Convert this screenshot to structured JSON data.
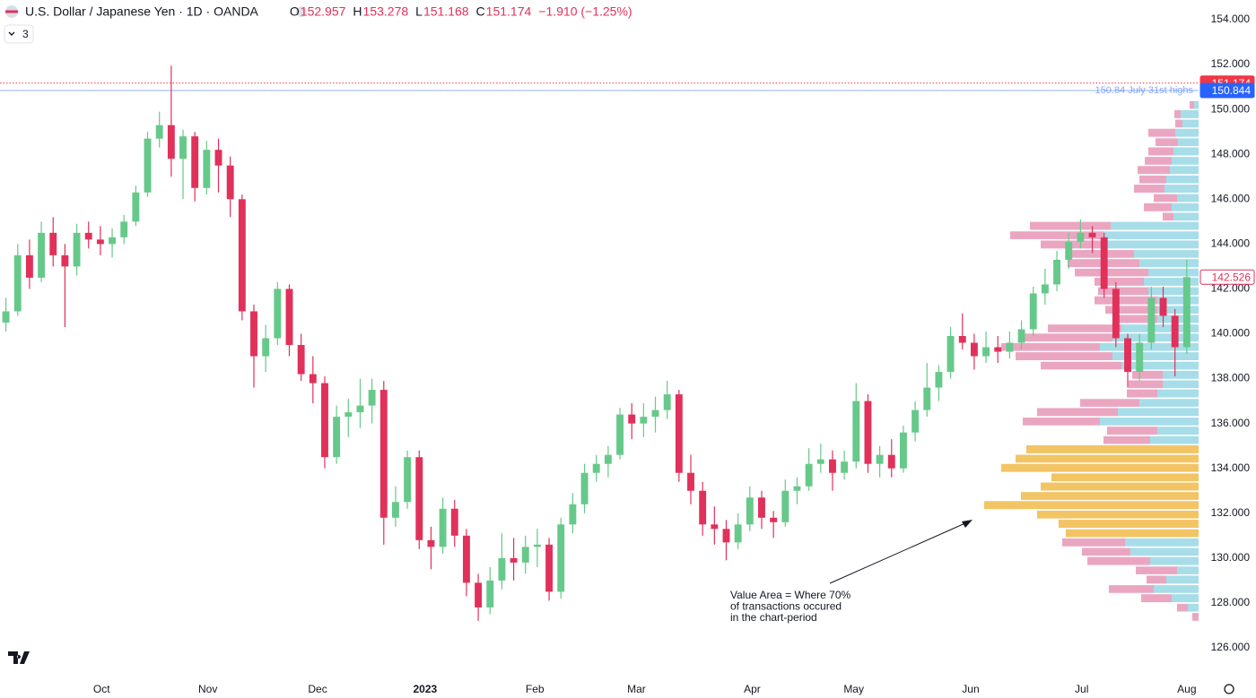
{
  "header": {
    "title": "U.S. Dollar / Japanese Yen · 1D · OANDA",
    "ohlc_labels": [
      "O",
      "H",
      "L",
      "C"
    ],
    "ohlc_values": [
      "152.957",
      "153.278",
      "151.168",
      "151.174"
    ],
    "change": "−1.910 (−1.25%)",
    "indicators": "3"
  },
  "chart_data": {
    "type": "candlestick",
    "ohlc": [
      [
        140.5,
        141.6,
        140.1,
        141.0
      ],
      [
        141.0,
        144.0,
        140.8,
        143.5
      ],
      [
        143.5,
        144.2,
        142.0,
        142.5
      ],
      [
        142.5,
        145.0,
        142.3,
        144.5
      ],
      [
        144.5,
        145.2,
        143.0,
        143.5
      ],
      [
        143.5,
        144.0,
        140.3,
        143.0
      ],
      [
        143.0,
        144.9,
        142.6,
        144.5
      ],
      [
        144.5,
        145.0,
        143.8,
        144.2
      ],
      [
        144.2,
        144.8,
        143.5,
        144.0
      ],
      [
        144.0,
        144.7,
        143.4,
        144.3
      ],
      [
        144.3,
        145.3,
        144.0,
        145.0
      ],
      [
        145.0,
        146.6,
        144.8,
        146.3
      ],
      [
        146.3,
        149.0,
        146.1,
        148.7
      ],
      [
        148.7,
        149.9,
        148.3,
        149.3
      ],
      [
        149.3,
        151.95,
        147.0,
        147.8
      ],
      [
        147.8,
        149.1,
        146.0,
        148.8
      ],
      [
        148.8,
        149.0,
        145.9,
        146.5
      ],
      [
        146.5,
        148.6,
        146.2,
        148.2
      ],
      [
        148.2,
        148.7,
        146.3,
        147.5
      ],
      [
        147.5,
        147.9,
        145.2,
        146.0
      ],
      [
        146.0,
        146.2,
        140.6,
        141.0
      ],
      [
        141.0,
        141.3,
        137.6,
        139.0
      ],
      [
        139.0,
        140.4,
        138.3,
        139.8
      ],
      [
        139.8,
        142.3,
        139.5,
        142.0
      ],
      [
        142.0,
        142.2,
        139.0,
        139.5
      ],
      [
        139.5,
        140.0,
        137.9,
        138.2
      ],
      [
        138.2,
        139.0,
        136.9,
        137.8
      ],
      [
        137.8,
        138.1,
        134.0,
        134.5
      ],
      [
        134.5,
        136.8,
        134.2,
        136.3
      ],
      [
        136.3,
        137.1,
        135.4,
        136.5
      ],
      [
        136.5,
        138.0,
        135.8,
        136.8
      ],
      [
        136.8,
        138.0,
        136.0,
        137.5
      ],
      [
        137.5,
        137.9,
        130.6,
        131.8
      ],
      [
        131.8,
        133.2,
        131.4,
        132.5
      ],
      [
        132.5,
        134.8,
        132.2,
        134.5
      ],
      [
        134.5,
        134.8,
        130.4,
        130.8
      ],
      [
        130.8,
        131.4,
        129.5,
        130.5
      ],
      [
        130.5,
        132.7,
        130.2,
        132.2
      ],
      [
        132.2,
        132.6,
        130.5,
        131.0
      ],
      [
        131.0,
        131.3,
        128.3,
        128.9
      ],
      [
        128.9,
        129.3,
        127.2,
        127.8
      ],
      [
        127.8,
        129.6,
        127.5,
        129.0
      ],
      [
        129.0,
        131.1,
        128.6,
        130.0
      ],
      [
        130.0,
        130.9,
        129.0,
        129.8
      ],
      [
        129.8,
        131.0,
        129.3,
        130.5
      ],
      [
        130.5,
        131.3,
        129.6,
        130.6
      ],
      [
        130.6,
        130.9,
        128.1,
        128.5
      ],
      [
        128.5,
        131.8,
        128.2,
        131.5
      ],
      [
        131.5,
        132.9,
        131.1,
        132.4
      ],
      [
        132.4,
        134.2,
        132.0,
        133.8
      ],
      [
        133.8,
        134.6,
        133.4,
        134.2
      ],
      [
        134.2,
        135.0,
        133.6,
        134.6
      ],
      [
        134.6,
        136.7,
        134.4,
        136.4
      ],
      [
        136.4,
        136.9,
        135.3,
        136.0
      ],
      [
        136.0,
        136.9,
        135.4,
        136.3
      ],
      [
        136.3,
        137.2,
        135.6,
        136.6
      ],
      [
        136.6,
        137.9,
        136.2,
        137.3
      ],
      [
        137.3,
        137.5,
        133.4,
        133.8
      ],
      [
        133.8,
        134.6,
        132.4,
        133.0
      ],
      [
        133.0,
        133.4,
        131.0,
        131.5
      ],
      [
        131.5,
        132.3,
        130.6,
        131.3
      ],
      [
        131.3,
        131.7,
        129.9,
        130.7
      ],
      [
        130.7,
        132.0,
        130.4,
        131.5
      ],
      [
        131.5,
        133.2,
        131.2,
        132.7
      ],
      [
        132.7,
        133.0,
        131.3,
        131.8
      ],
      [
        131.8,
        132.1,
        130.9,
        131.6
      ],
      [
        131.6,
        133.5,
        131.4,
        133.0
      ],
      [
        133.0,
        133.6,
        132.4,
        133.2
      ],
      [
        133.2,
        134.9,
        133.0,
        134.2
      ],
      [
        134.2,
        135.1,
        133.8,
        134.4
      ],
      [
        134.4,
        134.8,
        133.0,
        133.8
      ],
      [
        133.8,
        134.8,
        133.5,
        134.3
      ],
      [
        134.3,
        137.8,
        134.0,
        137.0
      ],
      [
        137.0,
        137.3,
        133.8,
        134.2
      ],
      [
        134.2,
        135.0,
        133.6,
        134.6
      ],
      [
        134.6,
        135.3,
        133.6,
        134.0
      ],
      [
        134.0,
        135.9,
        133.8,
        135.6
      ],
      [
        135.6,
        137.0,
        135.2,
        136.6
      ],
      [
        136.6,
        138.7,
        136.3,
        137.6
      ],
      [
        137.6,
        138.6,
        137.0,
        138.3
      ],
      [
        138.3,
        140.3,
        138.0,
        139.9
      ],
      [
        139.9,
        140.9,
        139.3,
        139.6
      ],
      [
        139.6,
        140.0,
        138.4,
        139.0
      ],
      [
        139.0,
        140.1,
        138.7,
        139.4
      ],
      [
        139.4,
        139.9,
        138.7,
        139.2
      ],
      [
        139.2,
        140.1,
        138.9,
        139.6
      ],
      [
        139.6,
        140.6,
        139.3,
        140.2
      ],
      [
        140.2,
        142.1,
        139.9,
        141.8
      ],
      [
        141.8,
        142.9,
        141.3,
        142.2
      ],
      [
        142.2,
        143.7,
        141.9,
        143.3
      ],
      [
        143.3,
        144.5,
        142.9,
        144.1
      ],
      [
        144.1,
        145.1,
        143.8,
        144.5
      ],
      [
        144.5,
        144.8,
        143.6,
        144.3
      ],
      [
        144.3,
        144.5,
        141.6,
        142.0
      ],
      [
        142.0,
        142.3,
        139.4,
        139.8
      ],
      [
        139.8,
        140.0,
        137.6,
        138.3
      ],
      [
        138.3,
        140.0,
        137.9,
        139.6
      ],
      [
        139.6,
        142.1,
        139.3,
        141.6
      ],
      [
        141.6,
        142.1,
        140.3,
        140.8
      ],
      [
        140.8,
        141.1,
        138.1,
        139.4
      ],
      [
        139.4,
        143.3,
        139.1,
        142.526
      ]
    ],
    "up_color": "#66c98a",
    "down_color": "#e0315b",
    "xlim": [
      -0.5,
      101
    ],
    "xticks": [
      {
        "value": 8.1,
        "label": "Oct"
      },
      {
        "value": 17.1,
        "label": "Nov"
      },
      {
        "value": 26.4,
        "label": "Dec"
      },
      {
        "value": 35.5,
        "label": "2023"
      },
      {
        "value": 44.8,
        "label": "Feb"
      },
      {
        "value": 53.4,
        "label": "Mar"
      },
      {
        "value": 63.2,
        "label": "Apr"
      },
      {
        "value": 71.8,
        "label": "May"
      },
      {
        "value": 81.7,
        "label": "Jun"
      },
      {
        "value": 91.1,
        "label": "Jul"
      },
      {
        "value": 100,
        "label": "Aug"
      }
    ],
    "ylim": [
      126,
      154
    ],
    "yticks": [
      {
        "value": 126,
        "label": "126.000"
      },
      {
        "value": 128,
        "label": "128.000"
      },
      {
        "value": 130,
        "label": "130.000"
      },
      {
        "value": 132,
        "label": "132.000"
      },
      {
        "value": 134,
        "label": "134.000"
      },
      {
        "value": 136,
        "label": "136.000"
      },
      {
        "value": 138,
        "label": "138.000"
      },
      {
        "value": 140,
        "label": "140.000"
      },
      {
        "value": 142,
        "label": "142.000"
      },
      {
        "value": 144,
        "label": "144.000"
      },
      {
        "value": 146,
        "label": "146.000"
      },
      {
        "value": 148,
        "label": "148.000"
      },
      {
        "value": 150,
        "label": "150.000"
      },
      {
        "value": 152,
        "label": "152.000"
      },
      {
        "value": 154,
        "label": "154.000"
      }
    ],
    "grid": false,
    "hlines": [
      {
        "value": 151.174,
        "style": "dotted",
        "color": "#f23645"
      },
      {
        "value": 150.844,
        "style": "solid",
        "color": "#b7cdf7",
        "label_color": "#2962ff",
        "label": "150.84 July 31st highs"
      }
    ],
    "volume_profile": {
      "prices": [
        150.2,
        149.79,
        149.37,
        148.96,
        148.54,
        148.13,
        147.71,
        147.3,
        146.88,
        146.47,
        146.05,
        145.64,
        145.22,
        144.81,
        144.39,
        143.98,
        143.56,
        143.15,
        142.73,
        142.32,
        141.9,
        141.49,
        141.07,
        140.66,
        140.24,
        139.83,
        139.41,
        139.0,
        138.58,
        138.17,
        137.75,
        137.34,
        136.92,
        136.51,
        136.09,
        135.68,
        135.26,
        134.85,
        134.43,
        134.02,
        133.6,
        133.19,
        132.77,
        132.36,
        131.94,
        131.53,
        131.11,
        130.7,
        130.28,
        129.87,
        129.45,
        129.04,
        128.62,
        128.21,
        127.79,
        127.38
      ],
      "up_volume": [
        5,
        20,
        18,
        26,
        23,
        28,
        30,
        32,
        36,
        38,
        24,
        30,
        28,
        98,
        106,
        104,
        72,
        66,
        56,
        61,
        56,
        46,
        46,
        46,
        86,
        96,
        110,
        96,
        86,
        40,
        40,
        46,
        66,
        90,
        110,
        46,
        54,
        96,
        102,
        110,
        82,
        88,
        99,
        120,
        90,
        78,
        74,
        82,
        76,
        54,
        24,
        36,
        50,
        30,
        12,
        0
      ],
      "down_volume": [
        5,
        7,
        8,
        30,
        25,
        28,
        30,
        36,
        30,
        34,
        26,
        31,
        12,
        90,
        104,
        72,
        76,
        80,
        82,
        55,
        56,
        70,
        58,
        50,
        82,
        100,
        110,
        108,
        90,
        34,
        38,
        34,
        66,
        90,
        86,
        56,
        52,
        96,
        102,
        110,
        82,
        88,
        99,
        119,
        90,
        78,
        74,
        70,
        54,
        70,
        46,
        22,
        50,
        34,
        12,
        7
      ],
      "up_color": "#a6dde8",
      "down_color": "#eaa6c1",
      "value_area_color": "#f2c464",
      "value_area": [
        130.9,
        135.06
      ]
    },
    "annotation": {
      "lines": [
        "Value Area = Where 70%",
        "of transactions occured",
        "in the chart-period"
      ]
    }
  }
}
